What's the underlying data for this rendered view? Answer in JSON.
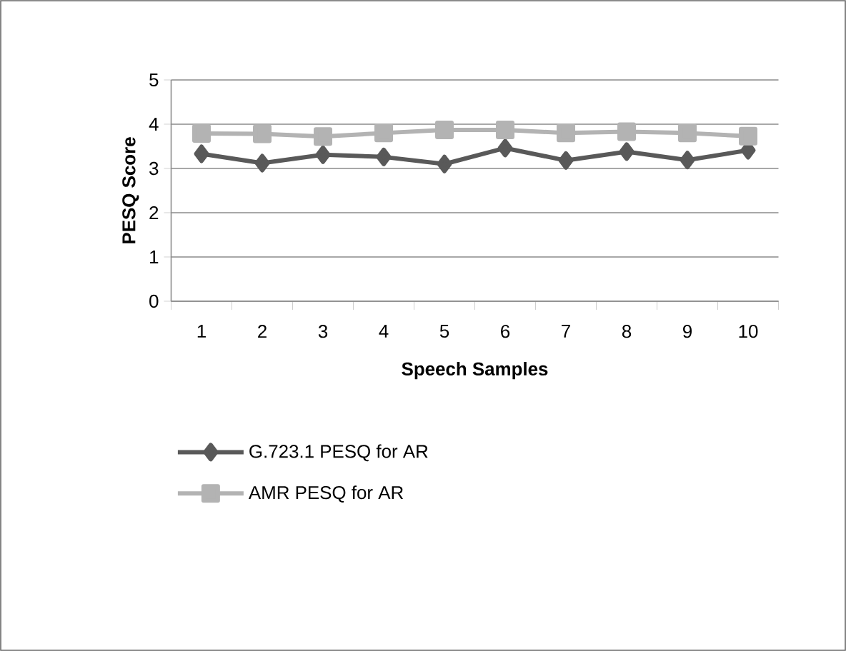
{
  "chart_data": {
    "type": "line",
    "xlabel": "Speech Samples",
    "ylabel": "PESQ Score",
    "categories": [
      "1",
      "2",
      "3",
      "4",
      "5",
      "6",
      "7",
      "8",
      "9",
      "10"
    ],
    "series": [
      {
        "name": "G.723.1 PESQ for AR",
        "color": "#595959",
        "marker": "diamond",
        "values": [
          3.33,
          3.12,
          3.31,
          3.26,
          3.1,
          3.46,
          3.18,
          3.38,
          3.19,
          3.41
        ]
      },
      {
        "name": "AMR PESQ for AR",
        "color": "#b3b3b3",
        "marker": "square",
        "values": [
          3.79,
          3.78,
          3.72,
          3.8,
          3.87,
          3.87,
          3.8,
          3.83,
          3.8,
          3.73
        ]
      }
    ],
    "ylim": [
      0,
      5
    ],
    "yticks": [
      0,
      1,
      2,
      3,
      4,
      5
    ],
    "grid": "y",
    "legend": "bottom"
  }
}
